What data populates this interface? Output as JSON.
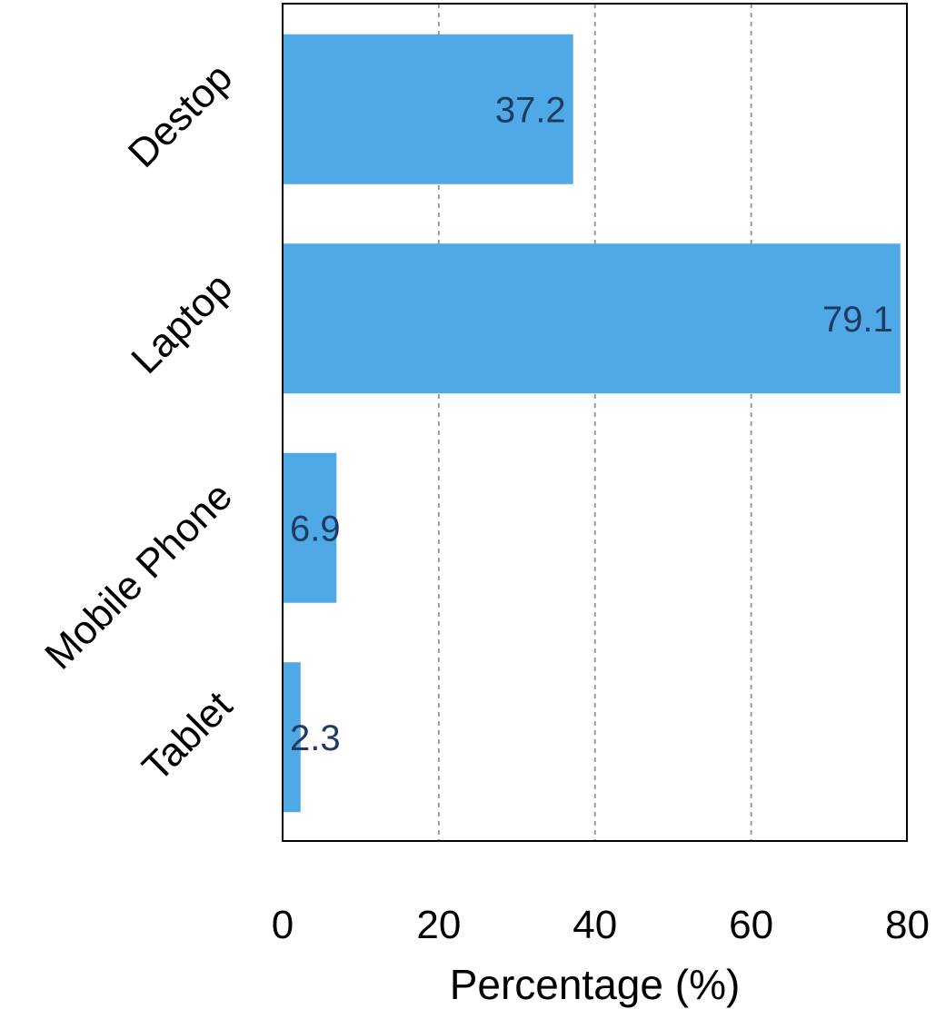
{
  "chart_data": {
    "type": "bar",
    "orientation": "horizontal",
    "categories": [
      "Destop",
      "Laptop",
      "Mobile Phone",
      "Tablet"
    ],
    "values": [
      37.2,
      79.1,
      6.9,
      2.3
    ],
    "data_labels": [
      "37.2",
      "79.1",
      "6.9",
      "2.3"
    ],
    "xlabel": "Percentage (%)",
    "ylabel": "",
    "xlim": [
      0,
      80
    ],
    "xticks": [
      "0",
      "20",
      "40",
      "60",
      "80"
    ],
    "grid": "vertical dashed",
    "legend": "none",
    "bar_color": "#4ea9e6",
    "label_color": "#1f3a63"
  }
}
